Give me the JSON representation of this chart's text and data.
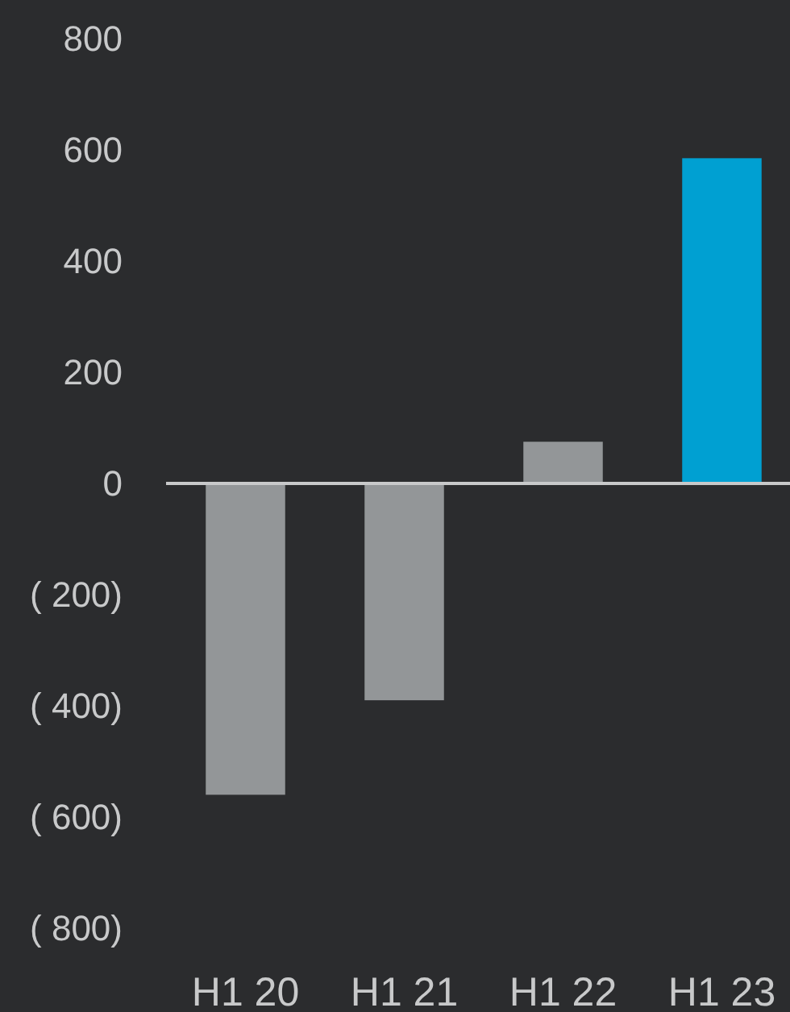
{
  "chart_data": {
    "type": "bar",
    "categories": [
      "H1 20",
      "H1 21",
      "H1 22",
      "H1 23"
    ],
    "values": [
      -560,
      -390,
      75,
      585
    ],
    "colors": [
      "#939698",
      "#939698",
      "#939698",
      "#00a0d2"
    ],
    "ylim": [
      -800,
      800
    ],
    "yticks": [
      800,
      600,
      400,
      200,
      0,
      {
        "value": -200,
        "label": "( 200)"
      },
      {
        "value": -400,
        "label": "( 400)"
      },
      {
        "value": -600,
        "label": "( 600)"
      },
      {
        "value": -800,
        "label": "( 800)"
      }
    ]
  }
}
